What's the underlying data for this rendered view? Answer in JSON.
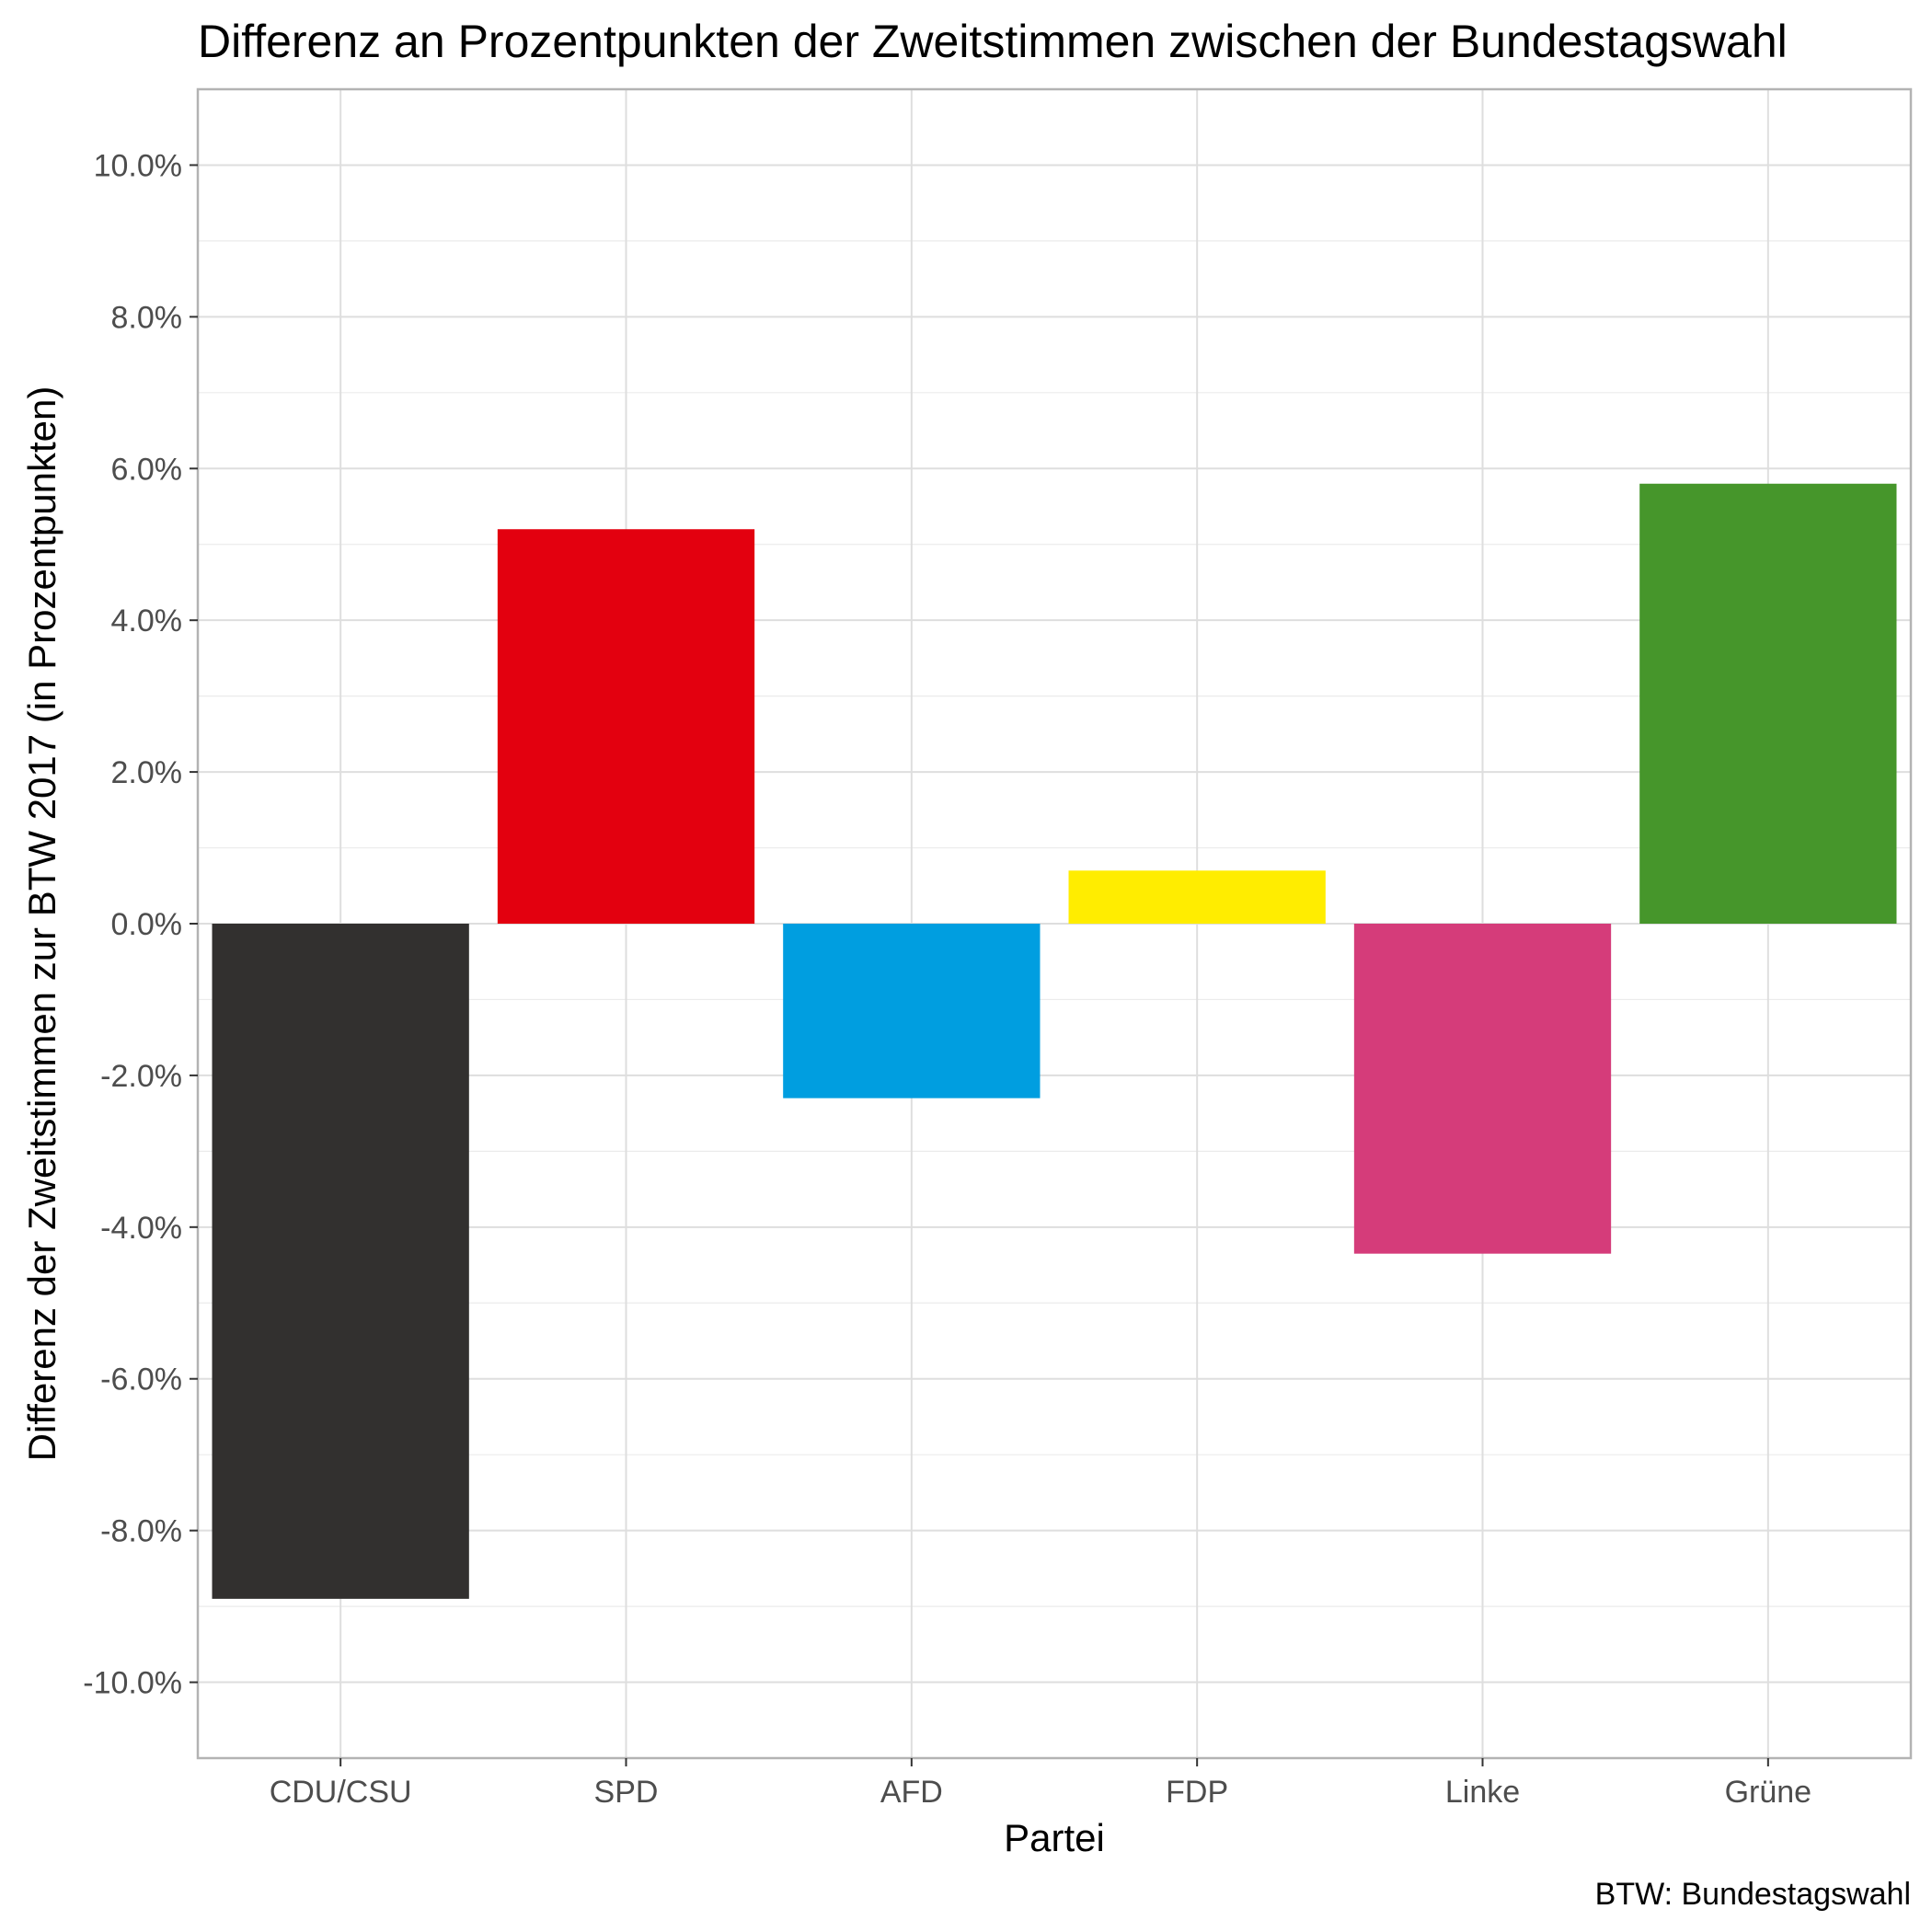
{
  "chart_data": {
    "type": "bar",
    "title": "Differenz an Prozentpunkten der Zweitstimmen zwischen der Bundestagswahl",
    "xlabel": "Partei",
    "ylabel": "Differenz der Zweitstimmen zur BTW 2017 (in Prozentpunkten)",
    "caption": "BTW: Bundestagswahl",
    "categories": [
      "CDU/CSU",
      "SPD",
      "AFD",
      "FDP",
      "Linke",
      "Grüne"
    ],
    "values": [
      -8.9,
      5.2,
      -2.3,
      0.7,
      -4.35,
      5.8
    ],
    "colors": [
      "#32302f",
      "#e3000f",
      "#009ee0",
      "#ffed00",
      "#d53c7a",
      "#46962b"
    ],
    "ylim": [
      -11,
      11
    ],
    "yticks": [
      -10,
      -8,
      -6,
      -4,
      -2,
      0,
      2,
      4,
      6,
      8,
      10
    ],
    "ytick_labels": [
      "-10.0%",
      "-8.0%",
      "-6.0%",
      "-4.0%",
      "-2.0%",
      "0.0%",
      "2.0%",
      "4.0%",
      "6.0%",
      "8.0%",
      "10.0%"
    ],
    "grid": true,
    "legend": "none"
  }
}
